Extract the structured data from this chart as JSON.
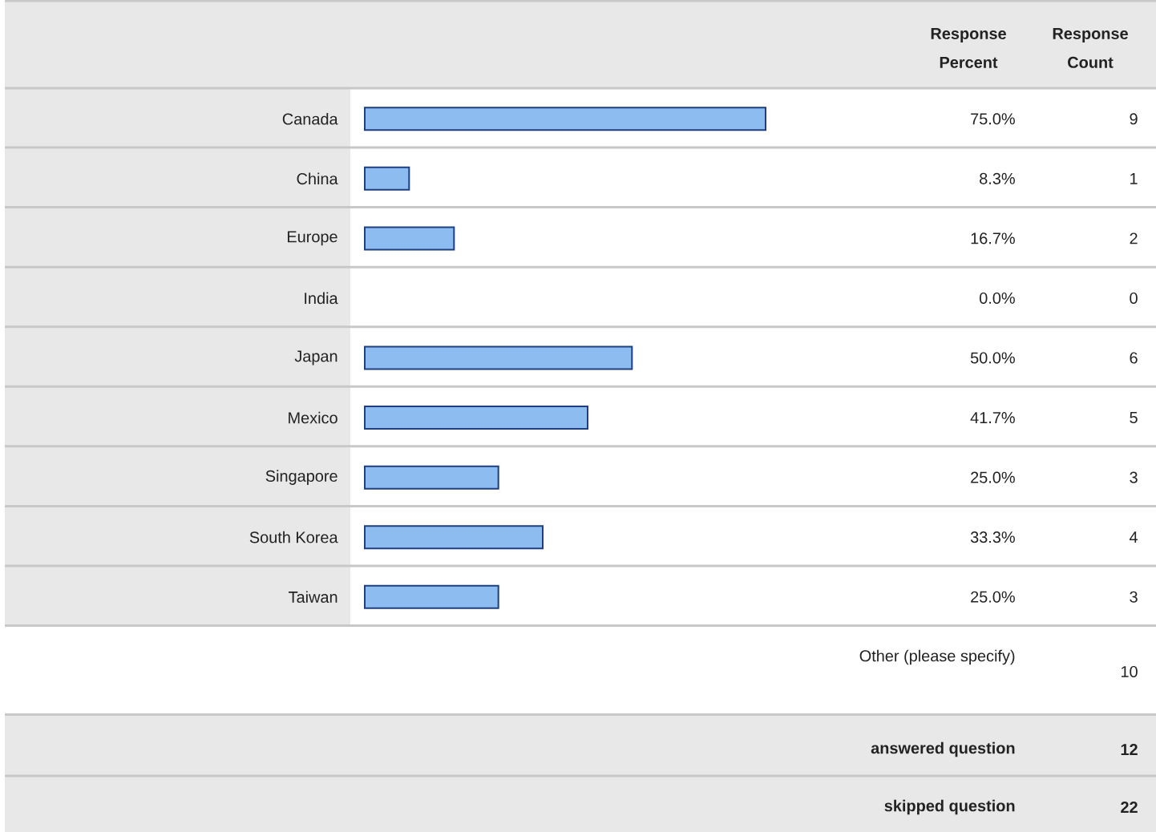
{
  "chart_data": {
    "type": "bar",
    "orientation": "horizontal",
    "categories": [
      "Canada",
      "China",
      "Europe",
      "India",
      "Japan",
      "Mexico",
      "Singapore",
      "South Korea",
      "Taiwan"
    ],
    "values": [
      75.0,
      8.3,
      16.7,
      0.0,
      50.0,
      41.7,
      25.0,
      33.3,
      25.0
    ],
    "value_labels": [
      "75.0%",
      "8.3%",
      "16.7%",
      "0.0%",
      "50.0%",
      "41.7%",
      "25.0%",
      "33.3%",
      "25.0%"
    ],
    "color": "#8dbdf0",
    "tick_labels": "y",
    "annotations": [
      "Response Percent",
      "Response Count",
      "9",
      "1",
      "2",
      "0",
      "6",
      "5",
      "3",
      "4",
      "3",
      "Other (please specify)",
      "10",
      "answered question",
      "12",
      "skipped question",
      "22"
    ]
  }
}
